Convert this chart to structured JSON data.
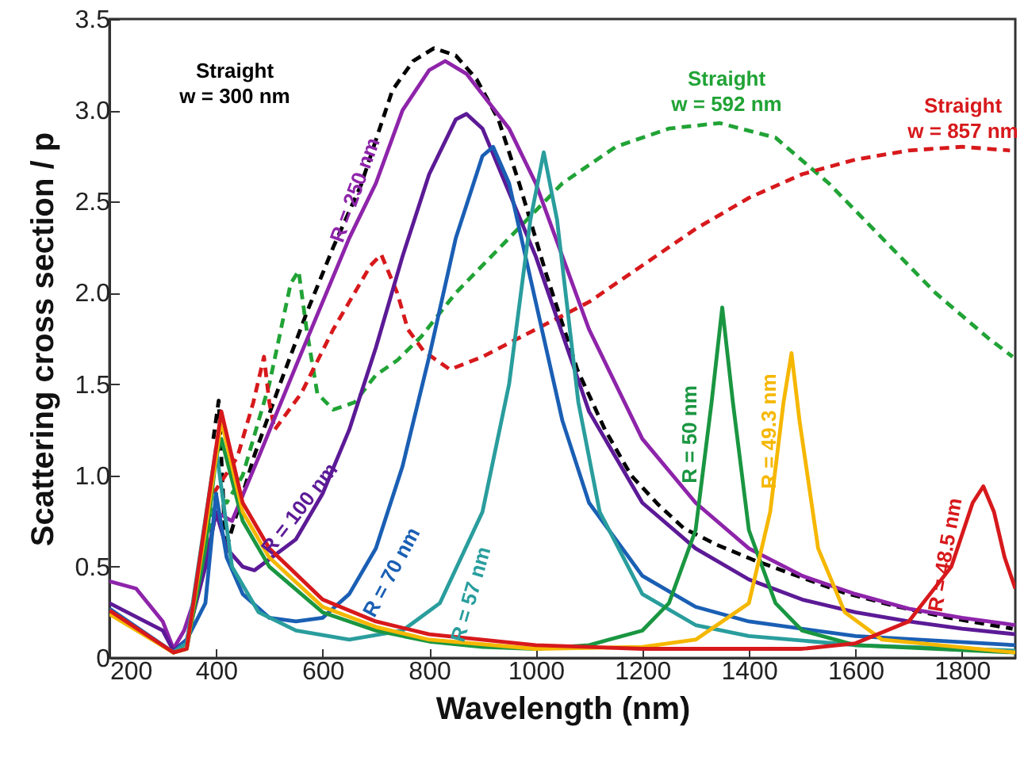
{
  "chart_data": {
    "type": "line",
    "xlabel": "Wavelength (nm)",
    "ylabel": "Scattering cross section / p",
    "xlim": [
      200,
      1900
    ],
    "xticks": [
      200,
      400,
      600,
      800,
      1000,
      1200,
      1400,
      1600,
      1800
    ],
    "ylim": [
      0,
      3.5
    ],
    "yticks": [
      0,
      0.5,
      {
        "value": 1,
        "label": "1.0"
      },
      1.5,
      {
        "value": 2,
        "label": "2.0"
      },
      2.5,
      {
        "value": 3,
        "label": "3.0"
      },
      3.5
    ],
    "grid": false,
    "marker": "none",
    "series": [
      {
        "color": "#000000",
        "line_style": "dashed",
        "x": [
          395,
          405,
          418,
          440,
          472,
          520,
          570,
          620,
          672,
          731,
          770,
          809,
          850,
          889,
          930,
          970,
          1020,
          1078,
          1130,
          1179,
          1230,
          1278,
          1340,
          1406,
          1490,
          1576,
          1680,
          1776,
          1895
        ],
        "values": [
          1.2,
          1.41,
          0.59,
          0.8,
          1.11,
          1.5,
          1.89,
          2.25,
          2.59,
          3.11,
          3.27,
          3.34,
          3.3,
          3.17,
          2.95,
          2.59,
          2.1,
          1.58,
          1.25,
          1.0,
          0.84,
          0.71,
          0.62,
          0.54,
          0.45,
          0.36,
          0.28,
          0.22,
          0.16
        ]
      },
      {
        "color": "#21a336",
        "line_style": "dashed",
        "x": [
          385,
          400,
          420,
          450,
          500,
          540,
          555,
          570,
          590,
          620,
          660,
          700,
          740,
          785,
          850,
          950,
          1050,
          1150,
          1250,
          1345,
          1450,
          1550,
          1650,
          1750,
          1850,
          1895
        ],
        "values": [
          0.6,
          0.9,
          0.85,
          1.0,
          1.5,
          2.05,
          2.12,
          1.8,
          1.45,
          1.36,
          1.4,
          1.55,
          1.63,
          1.76,
          2.0,
          2.3,
          2.6,
          2.8,
          2.9,
          2.93,
          2.85,
          2.6,
          2.3,
          2.0,
          1.75,
          1.65
        ]
      },
      {
        "color": "#d7191c",
        "line_style": "dashed",
        "x": [
          395,
          440,
          470,
          490,
          500,
          510,
          560,
          620,
          690,
          710,
          740,
          760,
          790,
          839,
          900,
          1000,
          1100,
          1200,
          1300,
          1400,
          1500,
          1600,
          1700,
          1800,
          1890
        ],
        "values": [
          0.9,
          1.1,
          1.4,
          1.65,
          1.4,
          1.25,
          1.45,
          1.8,
          2.15,
          2.21,
          2.0,
          1.8,
          1.68,
          1.58,
          1.65,
          1.8,
          1.95,
          2.15,
          2.35,
          2.52,
          2.65,
          2.73,
          2.78,
          2.8,
          2.78
        ]
      },
      {
        "color": "#8e24aa",
        "line_style": "solid",
        "x": [
          200,
          250,
          300,
          320,
          340,
          380,
          400,
          430,
          480,
          550,
          650,
          700,
          750,
          800,
          830,
          870,
          950,
          1000,
          1100,
          1200,
          1300,
          1400,
          1500,
          1600,
          1700,
          1800,
          1900
        ],
        "values": [
          0.42,
          0.38,
          0.2,
          0.05,
          0.15,
          0.5,
          0.8,
          0.75,
          1.1,
          1.6,
          2.3,
          2.6,
          3.0,
          3.22,
          3.27,
          3.2,
          2.9,
          2.6,
          1.8,
          1.2,
          0.85,
          0.6,
          0.45,
          0.35,
          0.27,
          0.22,
          0.18
        ]
      },
      {
        "color": "#5c1a96",
        "line_style": "solid",
        "x": [
          200,
          300,
          320,
          345,
          380,
          400,
          420,
          450,
          472,
          550,
          600,
          650,
          700,
          750,
          800,
          850,
          870,
          900,
          1000,
          1100,
          1200,
          1300,
          1400,
          1500,
          1600,
          1700,
          1800,
          1900
        ],
        "values": [
          0.3,
          0.15,
          0.04,
          0.1,
          0.5,
          0.8,
          0.6,
          0.5,
          0.48,
          0.65,
          0.9,
          1.25,
          1.7,
          2.2,
          2.65,
          2.95,
          2.98,
          2.9,
          2.2,
          1.35,
          0.85,
          0.6,
          0.43,
          0.32,
          0.25,
          0.2,
          0.16,
          0.13
        ]
      },
      {
        "color": "#1a5fb4",
        "line_style": "solid",
        "x": [
          200,
          320,
          345,
          380,
          400,
          420,
          450,
          500,
          550,
          600,
          650,
          700,
          750,
          800,
          850,
          900,
          920,
          950,
          1000,
          1050,
          1100,
          1200,
          1300,
          1400,
          1600,
          1900
        ],
        "values": [
          0.27,
          0.03,
          0.1,
          0.3,
          0.9,
          0.55,
          0.35,
          0.22,
          0.2,
          0.22,
          0.35,
          0.6,
          1.05,
          1.65,
          2.3,
          2.75,
          2.8,
          2.6,
          1.95,
          1.3,
          0.85,
          0.45,
          0.28,
          0.2,
          0.12,
          0.07
        ]
      },
      {
        "color": "#2a9d9d",
        "line_style": "solid",
        "x": [
          200,
          320,
          345,
          400,
          430,
          480,
          550,
          650,
          750,
          820,
          900,
          950,
          990,
          1015,
          1040,
          1080,
          1120,
          1200,
          1300,
          1400,
          1600,
          1900
        ],
        "values": [
          0.25,
          0.03,
          0.08,
          1.15,
          0.5,
          0.25,
          0.15,
          0.1,
          0.15,
          0.3,
          0.8,
          1.5,
          2.4,
          2.77,
          2.4,
          1.4,
          0.8,
          0.35,
          0.18,
          0.12,
          0.07,
          0.04
        ]
      },
      {
        "color": "#1a9641",
        "line_style": "solid",
        "x": [
          200,
          320,
          345,
          380,
          400,
          410,
          450,
          500,
          600,
          700,
          800,
          900,
          1000,
          1100,
          1200,
          1250,
          1300,
          1330,
          1350,
          1370,
          1400,
          1450,
          1500,
          1600,
          1900
        ],
        "values": [
          0.25,
          0.03,
          0.05,
          0.6,
          1.1,
          1.2,
          0.75,
          0.5,
          0.25,
          0.15,
          0.09,
          0.06,
          0.05,
          0.07,
          0.15,
          0.3,
          0.7,
          1.4,
          1.92,
          1.4,
          0.7,
          0.3,
          0.15,
          0.07,
          0.03
        ]
      },
      {
        "color": "#f5b700",
        "line_style": "solid",
        "x": [
          200,
          320,
          345,
          380,
          410,
          450,
          500,
          600,
          700,
          800,
          1000,
          1200,
          1300,
          1400,
          1440,
          1465,
          1480,
          1495,
          1530,
          1580,
          1650,
          1900
        ],
        "values": [
          0.24,
          0.03,
          0.05,
          0.7,
          1.3,
          0.8,
          0.55,
          0.28,
          0.17,
          0.1,
          0.05,
          0.06,
          0.1,
          0.3,
          0.8,
          1.4,
          1.67,
          1.3,
          0.6,
          0.25,
          0.1,
          0.03
        ]
      },
      {
        "color": "#d7191c",
        "line_style": "solid",
        "x": [
          200,
          320,
          345,
          380,
          410,
          450,
          500,
          600,
          700,
          800,
          1000,
          1200,
          1500,
          1600,
          1700,
          1780,
          1820,
          1840,
          1860,
          1880,
          1900
        ],
        "values": [
          0.26,
          0.03,
          0.05,
          0.75,
          1.35,
          0.85,
          0.6,
          0.32,
          0.2,
          0.13,
          0.07,
          0.05,
          0.05,
          0.08,
          0.2,
          0.5,
          0.85,
          0.94,
          0.8,
          0.55,
          0.38
        ]
      }
    ],
    "annotations": [
      "Straight\nw = 300 nm",
      "Straight\nw = 592 nm",
      "Straight\nw = 857 nm",
      "R = 250 nm",
      "R = 100 nm",
      "R = 70 nm",
      "R = 57 nm",
      "R = 50 nm",
      "R = 49.3 nm",
      "R = 48.5 nm"
    ]
  }
}
